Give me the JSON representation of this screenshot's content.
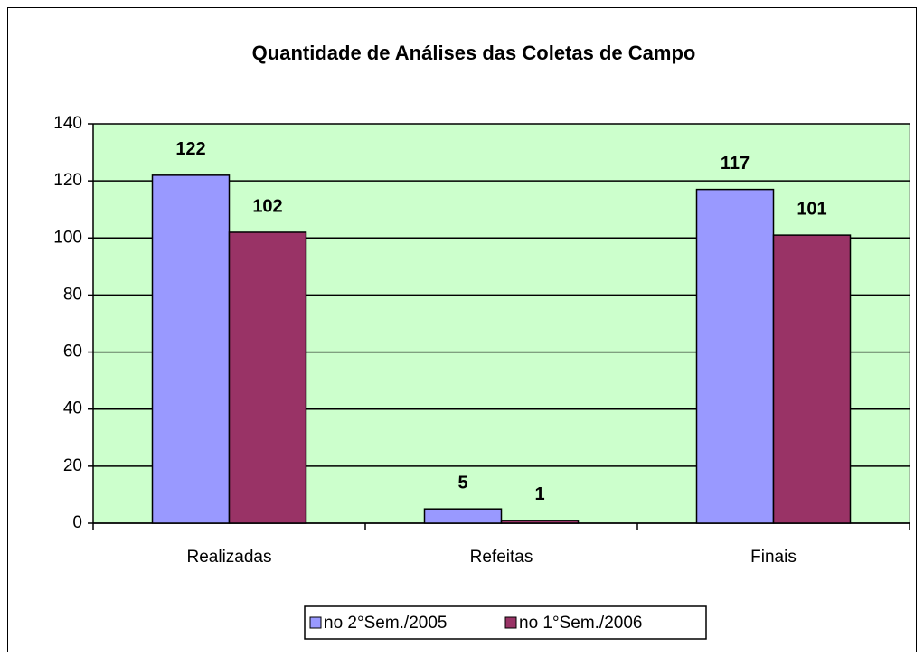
{
  "chart_data": {
    "type": "bar",
    "title": "Quantidade de Análises das Coletas de Campo",
    "categories": [
      "Realizadas",
      "Refeitas",
      "Finais"
    ],
    "series": [
      {
        "name": "no 2°Sem./2005",
        "color": "#9999ff",
        "values": [
          122,
          5,
          117
        ]
      },
      {
        "name": "no 1°Sem./2006",
        "color": "#993366",
        "values": [
          102,
          1,
          101
        ]
      }
    ],
    "ylim": [
      0,
      140
    ],
    "yticks": [
      0,
      20,
      40,
      60,
      80,
      100,
      120,
      140
    ],
    "grid": true,
    "plot_background": "#ccffcc",
    "legend": "bottom"
  }
}
